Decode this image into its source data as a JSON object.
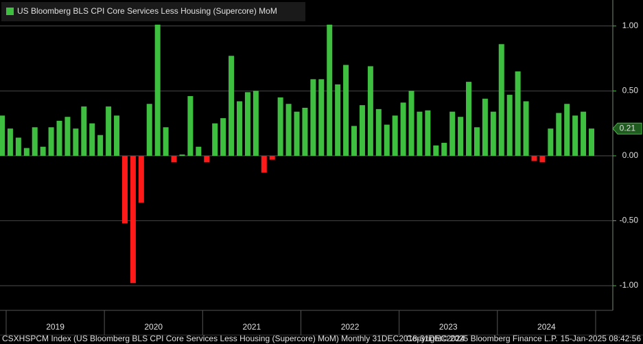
{
  "chart_data": {
    "type": "bar",
    "title": "US Bloomberg BLS CPI Core Services Less Housing (Supercore) MoM",
    "categories": [
      null,
      null,
      null,
      null,
      null,
      null,
      null,
      null,
      null,
      null,
      null,
      null,
      null,
      null,
      null,
      null,
      null,
      null,
      null,
      null,
      null,
      null,
      null,
      null,
      null,
      null,
      null,
      null,
      null,
      null,
      null,
      null,
      null,
      null,
      null,
      null,
      null,
      null,
      null,
      null,
      null,
      null,
      null,
      null,
      null,
      null,
      null,
      null,
      null,
      null,
      null,
      null,
      null,
      null,
      null,
      null,
      null,
      null,
      null,
      null,
      null,
      null,
      null,
      null,
      null,
      null,
      null,
      null,
      null,
      null,
      null,
      null,
      null
    ],
    "values": [
      0.31,
      0.21,
      0.14,
      0.06,
      0.22,
      0.07,
      0.22,
      0.27,
      0.3,
      0.21,
      0.38,
      0.25,
      0.16,
      0.38,
      0.31,
      -0.52,
      -0.98,
      -0.36,
      0.4,
      1.01,
      0.22,
      -0.05,
      0.01,
      0.46,
      0.07,
      -0.05,
      0.25,
      0.29,
      0.77,
      0.42,
      0.49,
      0.5,
      -0.13,
      -0.03,
      0.45,
      0.4,
      0.34,
      0.37,
      0.59,
      0.59,
      1.01,
      0.55,
      0.7,
      0.23,
      0.39,
      0.69,
      0.36,
      0.24,
      0.31,
      0.41,
      0.5,
      0.34,
      0.35,
      0.08,
      0.1,
      0.34,
      0.3,
      0.57,
      0.22,
      0.44,
      0.34,
      0.86,
      0.47,
      0.65,
      0.42,
      -0.04,
      -0.05,
      0.21,
      0.33,
      0.4,
      0.31,
      0.34,
      0.21
    ],
    "color": "#3fbf3f",
    "negative_color": "#ff1a1a",
    "year_labels": [
      "2019",
      "2020",
      "2021",
      "2022",
      "2023",
      "2024"
    ],
    "ylim": [
      -1.19,
      1.2
    ],
    "yticks": [
      {
        "value": -1,
        "label": "-1.00"
      },
      {
        "value": -0.5,
        "label": "-0.50"
      },
      {
        "value": 0,
        "label": "0.00"
      },
      {
        "value": 0.5,
        "label": "0.50"
      },
      {
        "value": 1,
        "label": "1.00"
      }
    ],
    "grid": true,
    "footer_left": "CSXHSPCM Index (US Bloomberg BLS CPI Core Services Less Housing (Supercore) MoM) Monthly 31DEC2018-31DEC2024",
    "footer_center": "Copyright© 2025 Bloomberg Finance L.P.",
    "footer_right": "15-Jan-2025 08:42:56"
  }
}
